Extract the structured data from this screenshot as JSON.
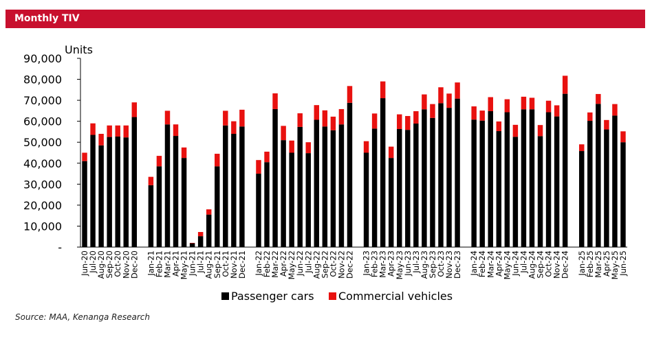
{
  "header": {
    "title": "Monthly TIV"
  },
  "source": "Source: MAA, Kenanga Research",
  "colors": {
    "banner": "#C8102E",
    "passenger": "#000000",
    "commercial": "#E8110F"
  },
  "chart_data": {
    "type": "bar",
    "stacked": true,
    "ylabel": "Units",
    "ylim": [
      0,
      90000
    ],
    "yticks": [
      0,
      10000,
      20000,
      30000,
      40000,
      50000,
      60000,
      70000,
      80000,
      90000
    ],
    "ytick_labels": [
      "-",
      "10,000",
      "20,000",
      "30,000",
      "40,000",
      "50,000",
      "60,000",
      "70,000",
      "80,000",
      "90,000"
    ],
    "grid": false,
    "legend": "bottom",
    "categories": [
      "Jun-20",
      "Jul-20",
      "Aug-20",
      "Sep-20",
      "Oct-20",
      "Nov-20",
      "Dec-20",
      "Jan-21",
      "Feb-21",
      "Mar-21",
      "Apr-21",
      "May-21",
      "Jun-21",
      "Jul-21",
      "Aug-21",
      "Sep-21",
      "Oct-21",
      "Nov-21",
      "Dec-21",
      "Jan-22",
      "Feb-22",
      "Mar-22",
      "Apr-22",
      "May-22",
      "Jun-22",
      "Jul-22",
      "Aug-22",
      "Sep-22",
      "Oct-22",
      "Nov-22",
      "Dec-22",
      "Jan-23",
      "Feb-23",
      "Mar-23",
      "Apr-23",
      "May-23",
      "Jun-23",
      "Jul-23",
      "Aug-23",
      "Sep-23",
      "Oct-23",
      "Nov-23",
      "Dec-23",
      "Jan-24",
      "Feb-24",
      "Mar-24",
      "Apr-24",
      "May-24",
      "Jun-24",
      "Jul-24",
      "Aug-24",
      "Sep-24",
      "Oct-24",
      "Nov-24",
      "Dec-24",
      "Jan-25",
      "Feb-25",
      "Mar-25",
      "Apr-25",
      "May-25",
      "Jun-25"
    ],
    "groups": [
      7,
      12,
      12,
      12,
      12,
      6
    ],
    "series": [
      {
        "name": "Passenger cars",
        "color": "#000000",
        "values": [
          41000,
          53500,
          48500,
          52500,
          52700,
          52300,
          62000,
          29500,
          38500,
          58500,
          53000,
          42500,
          1800,
          5200,
          15500,
          38500,
          58000,
          54000,
          57500,
          35000,
          40500,
          65800,
          51000,
          45000,
          57300,
          44800,
          60700,
          57500,
          55700,
          58500,
          68800,
          45000,
          56500,
          71000,
          42500,
          56300,
          55900,
          58900,
          65700,
          61600,
          68600,
          66400,
          70800,
          60800,
          60300,
          64800,
          55300,
          64300,
          52600,
          65700,
          65700,
          52900,
          64300,
          62300,
          73100,
          45800,
          60200,
          68300,
          56100,
          62700,
          50000
        ]
      },
      {
        "name": "Commercial vehicles",
        "color": "#E8110F",
        "values": [
          4000,
          5500,
          5500,
          5500,
          5300,
          5700,
          7000,
          4000,
          5000,
          6500,
          5500,
          5000,
          200,
          2000,
          2500,
          6000,
          7000,
          6000,
          8000,
          6500,
          5000,
          7500,
          6800,
          5800,
          6500,
          5200,
          7000,
          7700,
          6500,
          7300,
          8000,
          5500,
          7200,
          8000,
          5400,
          7000,
          6600,
          5900,
          7100,
          6600,
          7600,
          6800,
          7700,
          6300,
          4800,
          6700,
          4600,
          6200,
          5700,
          6000,
          5500,
          5300,
          5500,
          5300,
          8600,
          3200,
          4000,
          4700,
          4500,
          5500,
          5200
        ]
      }
    ]
  }
}
